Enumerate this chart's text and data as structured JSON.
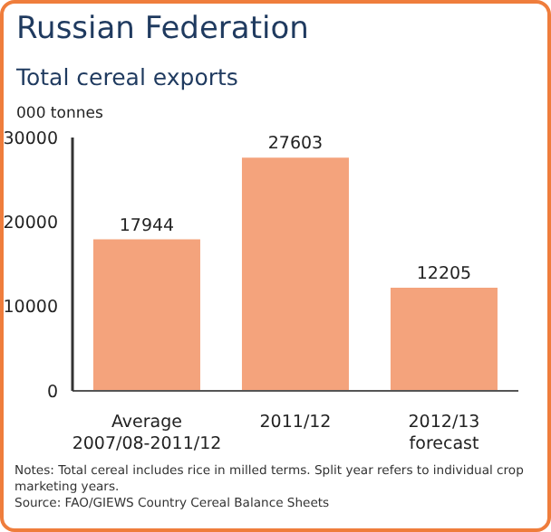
{
  "chart_data": {
    "type": "bar",
    "title": "Russian Federation",
    "subtitle": "Total cereal exports",
    "ylabel": "000 tonnes",
    "categories": [
      "Average 2007/08-2011/12",
      "2011/12",
      "2012/13 forecast"
    ],
    "values": [
      17944,
      27603,
      12205
    ],
    "color": "#f4a37c",
    "ylim": [
      0,
      30000
    ],
    "yticks": [
      0,
      10000,
      20000,
      30000
    ],
    "grid": false,
    "legend": false,
    "data_labels": true,
    "annotations": [
      "Notes: Total cereal includes rice in milled terms. Split year refers to individual crop marketing years.",
      "Source: FAO/GIEWS Country Cereal Balance Sheets"
    ]
  }
}
